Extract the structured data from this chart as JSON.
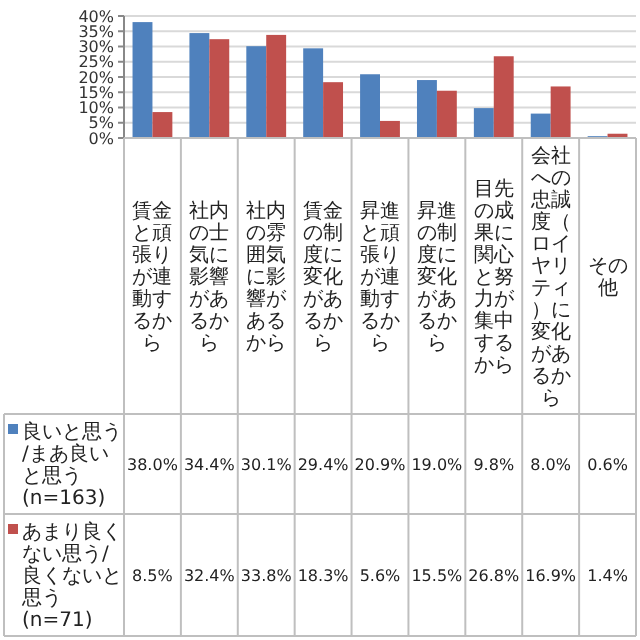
{
  "chart_data": {
    "type": "bar",
    "categories": [
      "賃金と頑張りが連動するから",
      "社内の士気に影響があるから",
      "社内の雰囲気に影響があるから",
      "賃金の制度に変化があるから",
      "昇進と頑張りが連動するから",
      "昇進の制度に変化があるから",
      "目先の成果に関心と努力が集中するから",
      "会社への忠誠度（ロイヤリティ）に変化があるから",
      "その他"
    ],
    "series": [
      {
        "name": "良いと思う/まあ良いと思う\n(n=163)",
        "color": "#4f81bd",
        "values": [
          38.0,
          34.4,
          30.1,
          29.4,
          20.9,
          19.0,
          9.8,
          8.0,
          0.6
        ],
        "value_labels": [
          "38.0%",
          "34.4%",
          "30.1%",
          "29.4%",
          "20.9%",
          "19.0%",
          "9.8%",
          "8.0%",
          "0.6%"
        ]
      },
      {
        "name": "あまり良くない思う/良くないと思う\n(n=71)",
        "color": "#c0504d",
        "values": [
          8.5,
          32.4,
          33.8,
          18.3,
          5.6,
          15.5,
          26.8,
          16.9,
          1.4
        ],
        "value_labels": [
          "8.5%",
          "32.4%",
          "33.8%",
          "18.3%",
          "5.6%",
          "15.5%",
          "26.8%",
          "16.9%",
          "1.4%"
        ]
      }
    ],
    "ylim": [
      0,
      40
    ],
    "yticks": [
      {
        "value": 0,
        "label": "0%"
      },
      {
        "value": 5,
        "label": "5%"
      },
      {
        "value": 10,
        "label": "10%"
      },
      {
        "value": 15,
        "label": "15%"
      },
      {
        "value": 20,
        "label": "20%"
      },
      {
        "value": 25,
        "label": "25%"
      },
      {
        "value": 30,
        "label": "30%"
      },
      {
        "value": 35,
        "label": "35%"
      },
      {
        "value": 40,
        "label": "40%"
      }
    ],
    "grid": "y",
    "legend": "bottom left"
  }
}
